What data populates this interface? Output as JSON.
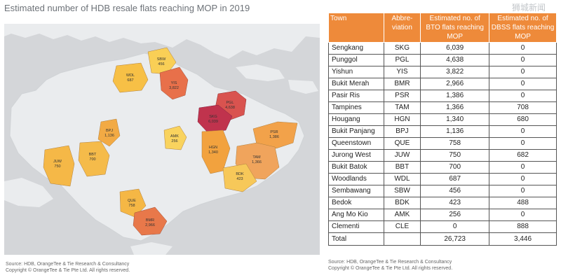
{
  "title": "Estimated number of HDB resale flats reaching MOP in 2019",
  "watermark": "狮城新闻",
  "map": {
    "regions": [
      {
        "abbr": "WDL",
        "value": "687",
        "color": "#f7c046"
      },
      {
        "abbr": "SBW",
        "value": "456",
        "color": "#f9cf56"
      },
      {
        "abbr": "YIS",
        "value": "3,822",
        "color": "#e8704a"
      },
      {
        "abbr": "PGL",
        "value": "4,638",
        "color": "#d9534f"
      },
      {
        "abbr": "SKG",
        "value": "6,039",
        "color": "#c0334d"
      },
      {
        "abbr": "BPJ",
        "value": "1,136",
        "color": "#f2aa44"
      },
      {
        "abbr": "AMK",
        "value": "256",
        "color": "#f9d35e"
      },
      {
        "abbr": "HGN",
        "value": "1,340",
        "color": "#f2a23e"
      },
      {
        "abbr": "PSR",
        "value": "1,386",
        "color": "#f2a24a"
      },
      {
        "abbr": "TAM",
        "value": "1,366",
        "color": "#f0a45c"
      },
      {
        "abbr": "JUW",
        "value": "750",
        "color": "#f5b847"
      },
      {
        "abbr": "BBT",
        "value": "700",
        "color": "#f5bb4a"
      },
      {
        "abbr": "BDK",
        "value": "423",
        "color": "#f7c859"
      },
      {
        "abbr": "QUE",
        "value": "758",
        "color": "#f5b745"
      },
      {
        "abbr": "BMR",
        "value": "2,966",
        "color": "#e8784a"
      }
    ]
  },
  "table": {
    "headers": {
      "town": "Town",
      "abbr": "Abbre-viation",
      "bto": "Estimated no. of BTO flats reaching MOP",
      "dbss": "Estimated no. of DBSS flats reaching MOP"
    },
    "rows": [
      {
        "town": "Sengkang",
        "abbr": "SKG",
        "bto": "6,039",
        "dbss": "0"
      },
      {
        "town": "Punggol",
        "abbr": "PGL",
        "bto": "4,638",
        "dbss": "0"
      },
      {
        "town": "Yishun",
        "abbr": "YIS",
        "bto": "3,822",
        "dbss": "0"
      },
      {
        "town": "Bukit Merah",
        "abbr": "BMR",
        "bto": "2,966",
        "dbss": "0"
      },
      {
        "town": "Pasir Ris",
        "abbr": "PSR",
        "bto": "1,386",
        "dbss": "0"
      },
      {
        "town": "Tampines",
        "abbr": "TAM",
        "bto": "1,366",
        "dbss": "708"
      },
      {
        "town": "Hougang",
        "abbr": "HGN",
        "bto": "1,340",
        "dbss": "680"
      },
      {
        "town": "Bukit Panjang",
        "abbr": "BPJ",
        "bto": "1,136",
        "dbss": "0"
      },
      {
        "town": "Queenstown",
        "abbr": "QUE",
        "bto": "758",
        "dbss": "0"
      },
      {
        "town": "Jurong West",
        "abbr": "JUW",
        "bto": "750",
        "dbss": "682"
      },
      {
        "town": "Bukit Batok",
        "abbr": "BBT",
        "bto": "700",
        "dbss": "0"
      },
      {
        "town": "Woodlands",
        "abbr": "WDL",
        "bto": "687",
        "dbss": "0"
      },
      {
        "town": "Sembawang",
        "abbr": "SBW",
        "bto": "456",
        "dbss": "0"
      },
      {
        "town": "Bedok",
        "abbr": "BDK",
        "bto": "423",
        "dbss": "488"
      },
      {
        "town": "Ang Mo Kio",
        "abbr": "AMK",
        "bto": "256",
        "dbss": "0"
      },
      {
        "town": "Clementi",
        "abbr": "CLE",
        "bto": "0",
        "dbss": "888"
      }
    ],
    "total": {
      "label": "Total",
      "bto": "26,723",
      "dbss": "3,446"
    }
  },
  "source_left": {
    "line1": "Source: HDB, OrangeTee & Tie Research & Consultancy",
    "line2": "Copyright © OrangeTee & Tie Pte Ltd. All rights reserved."
  },
  "source_right": {
    "line1": "Source: HDB, OrangeTee & Tie Research & Consultancy",
    "line2": "Copyright © OrangeTee & Tie Pte Ltd. All rights reserved."
  }
}
